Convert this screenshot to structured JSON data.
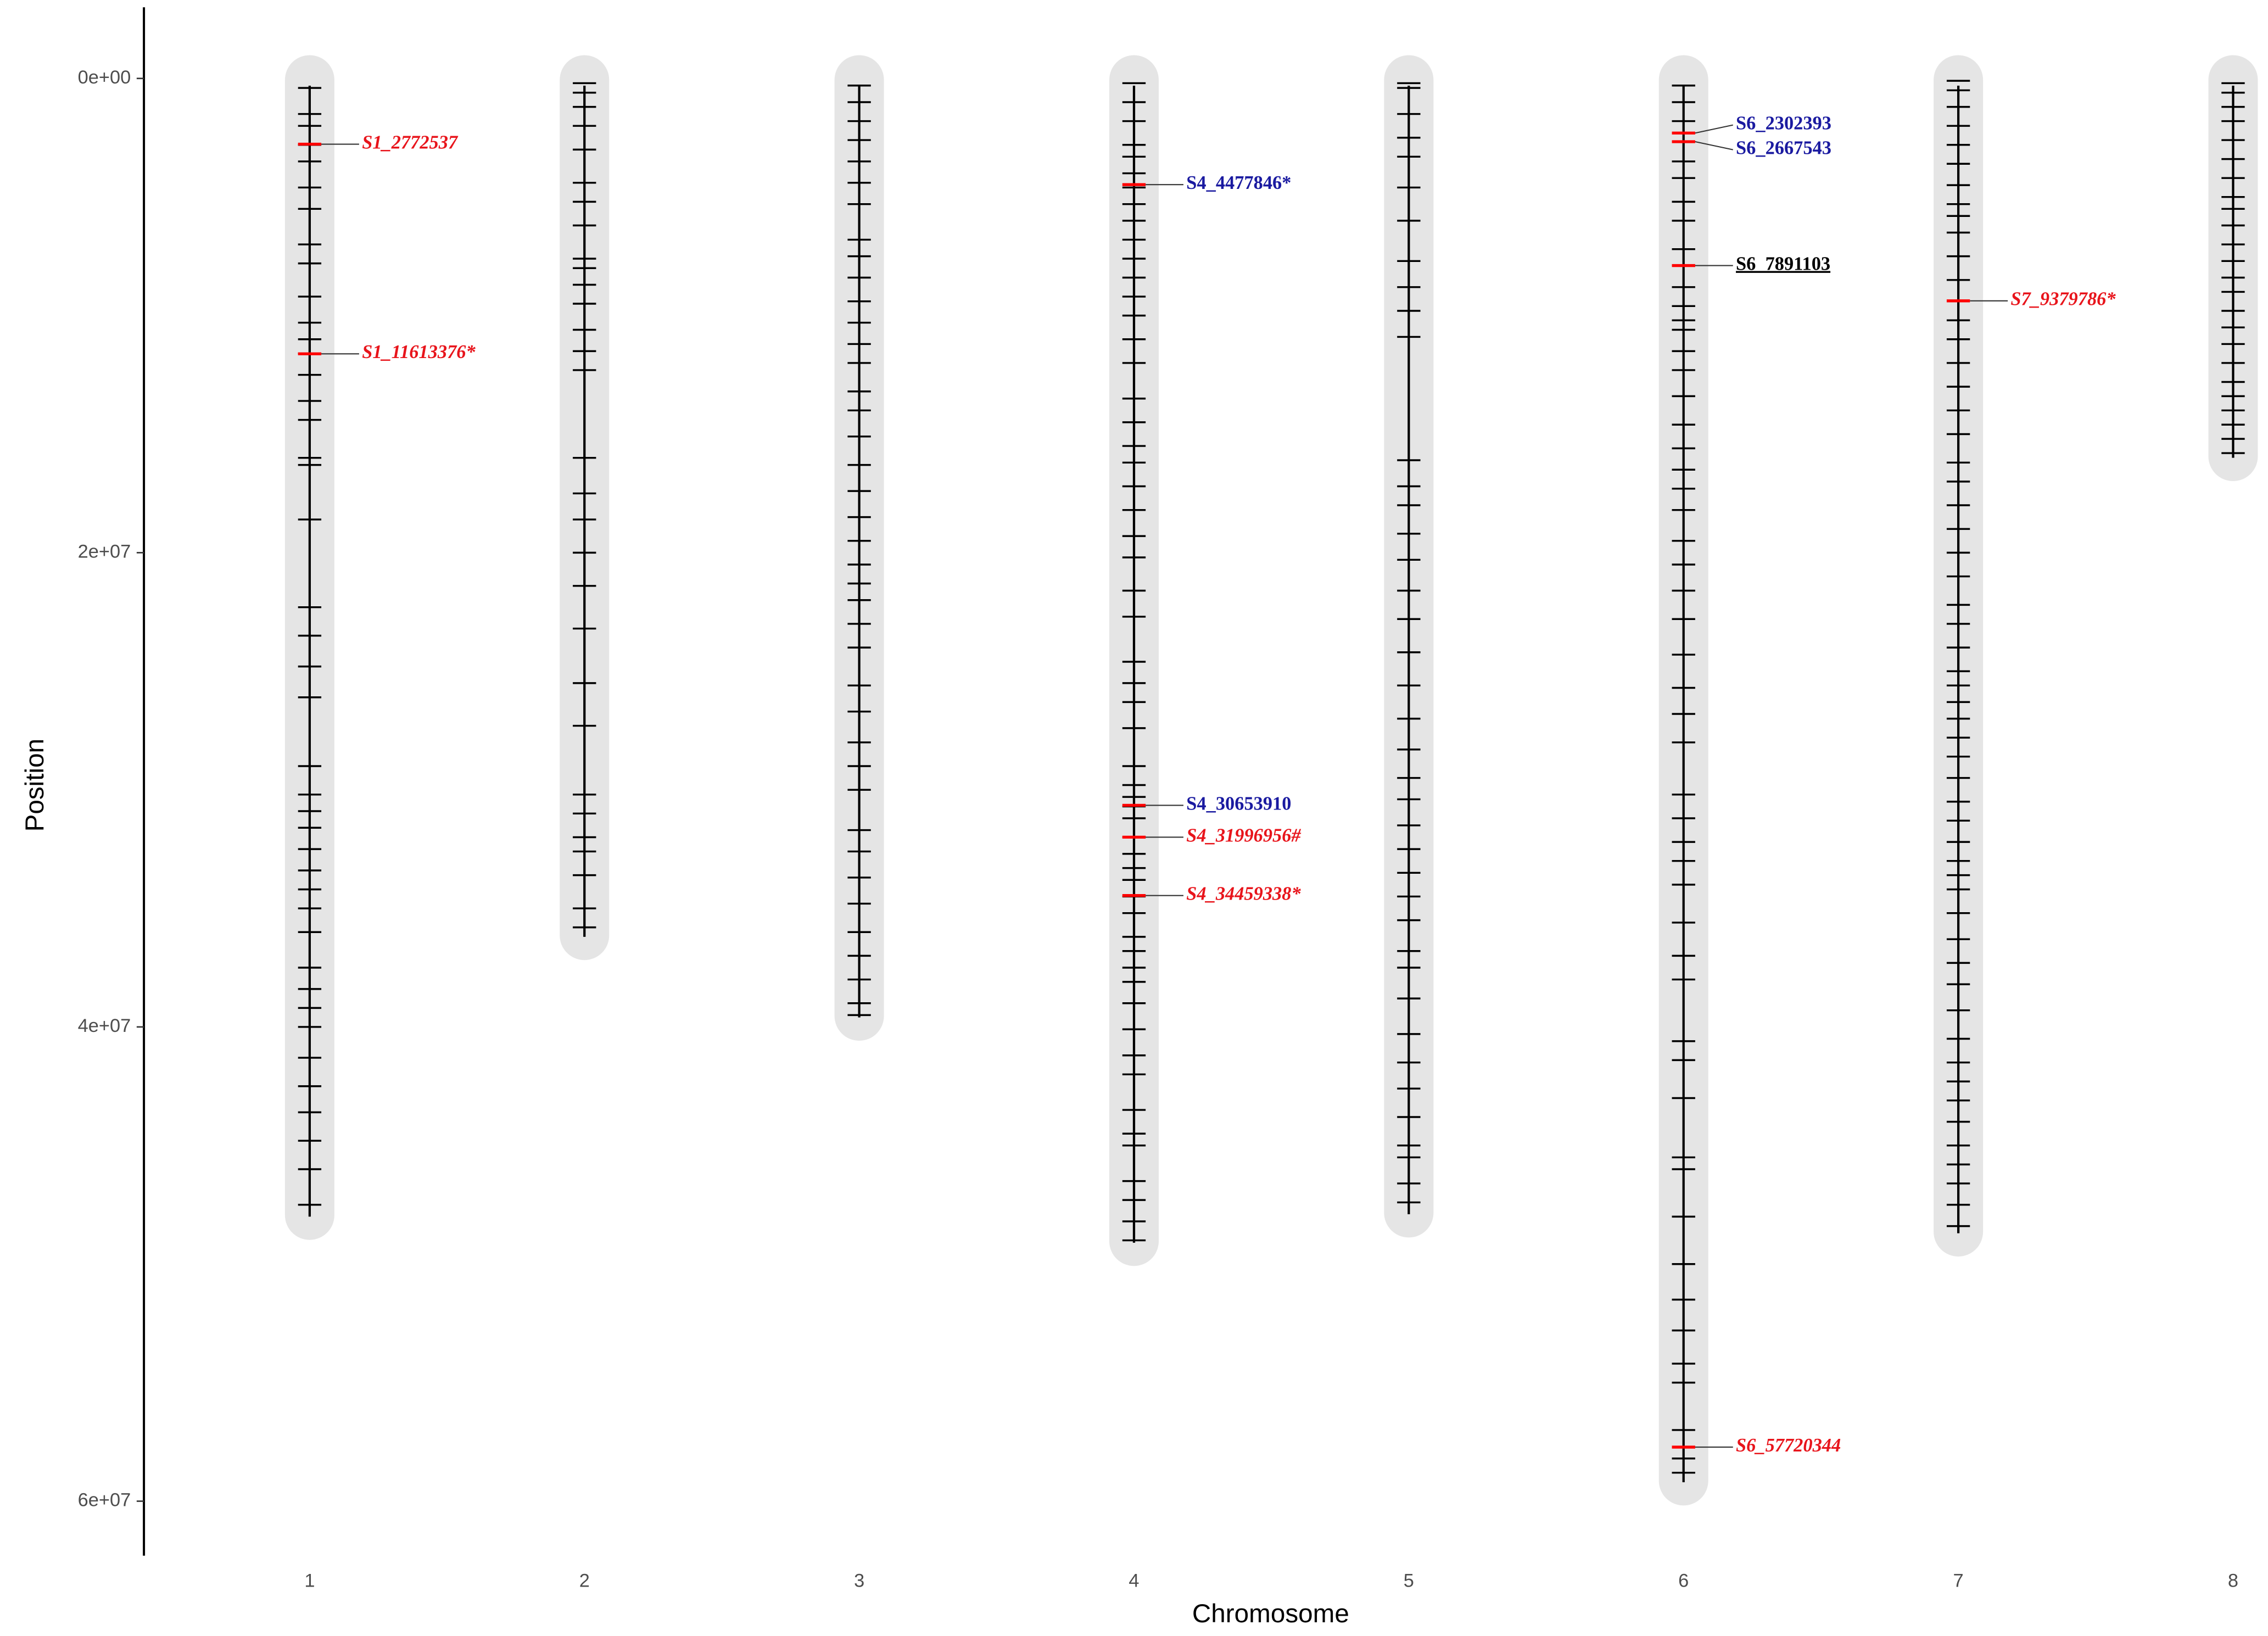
{
  "chart_data": {
    "type": "chromosome_map",
    "x_label": "Chromosome",
    "y_label": "Position",
    "ylim": [
      -3000000,
      62300000
    ],
    "yticks": [
      {
        "value": 0,
        "label": "0e+00"
      },
      {
        "value": 20000000,
        "label": "2e+07"
      },
      {
        "value": 40000000,
        "label": "4e+07"
      },
      {
        "value": 60000000,
        "label": "6e+07"
      }
    ],
    "y_reversed": true,
    "pill_color": "#e5e5e5",
    "marker_color": "#000000",
    "highlight_color": "#ff0000",
    "chromosomes": [
      {
        "name": "1",
        "length": 48000000,
        "markers": [
          400000.0,
          1500000.0,
          2000000.0,
          2800000.0,
          3500000.0,
          4600000.0,
          5500000.0,
          7000000.0,
          7800000.0,
          9200000.0,
          10300000.0,
          11000000.0,
          11600000.0,
          12500000.0,
          13600000.0,
          14400000.0,
          16000000.0,
          16300000.0,
          18600000.0,
          22300000.0,
          23500000.0,
          24800000.0,
          26100000.0,
          29000000.0,
          30200000.0,
          30900000.0,
          31600000.0,
          32500000.0,
          33400000.0,
          34200000.0,
          35000000.0,
          36000000.0,
          37500000.0,
          38400000.0,
          39200000.0,
          40000000.0,
          41300000.0,
          42500000.0,
          43600000.0,
          44800000.0,
          46000000.0,
          47500000.0
        ]
      },
      {
        "name": "2",
        "length": 36200000,
        "markers": [
          200000.0,
          600000.0,
          1200000.0,
          2000000.0,
          3000000.0,
          4400000.0,
          5200000.0,
          6200000.0,
          7600000.0,
          8000000.0,
          8700000.0,
          9500000.0,
          10600000.0,
          11500000.0,
          12300000.0,
          16000000.0,
          17500000.0,
          18600000.0,
          20000000.0,
          21400000.0,
          23200000.0,
          25500000.0,
          27300000.0,
          30200000.0,
          31000000.0,
          32000000.0,
          32600000.0,
          33600000.0,
          35000000.0,
          35800000.0
        ]
      },
      {
        "name": "3",
        "length": 39600000,
        "markers": [
          300000.0,
          1000000.0,
          1800000.0,
          2600000.0,
          3500000.0,
          4400000.0,
          5300000.0,
          6800000.0,
          7500000.0,
          8400000.0,
          9400000.0,
          10300000.0,
          11200000.0,
          12000000.0,
          13200000.0,
          14000000.0,
          15100000.0,
          16300000.0,
          17400000.0,
          18500000.0,
          19500000.0,
          20500000.0,
          21300000.0,
          22000000.0,
          23000000.0,
          24000000.0,
          25600000.0,
          26700000.0,
          28000000.0,
          29000000.0,
          30000000.0,
          31700000.0,
          32600000.0,
          33700000.0,
          34800000.0,
          36000000.0,
          37000000.0,
          38000000.0,
          39000000.0,
          39500000.0
        ]
      },
      {
        "name": "4",
        "length": 49100000,
        "markers": [
          200000.0,
          1000000.0,
          1800000.0,
          2800000.0,
          3300000.0,
          4000000.0,
          4600000.0,
          5300000.0,
          6000000.0,
          6800000.0,
          7600000.0,
          8400000.0,
          9200000.0,
          10000000.0,
          11000000.0,
          12000000.0,
          13500000.0,
          14500000.0,
          15500000.0,
          16200000.0,
          17200000.0,
          18200000.0,
          19300000.0,
          20200000.0,
          21600000.0,
          22700000.0,
          24600000.0,
          25500000.0,
          26300000.0,
          27400000.0,
          29000000.0,
          29800000.0,
          30300000.0,
          30700000.0,
          31200000.0,
          32000000.0,
          32700000.0,
          33300000.0,
          33800000.0,
          34500000.0,
          35200000.0,
          36200000.0,
          36800000.0,
          37500000.0,
          38100000.0,
          39000000.0,
          40100000.0,
          41200000.0,
          42000000.0,
          43500000.0,
          44500000.0,
          45000000.0,
          46500000.0,
          47300000.0,
          48200000.0,
          49000000.0
        ]
      },
      {
        "name": "5",
        "length": 47900000,
        "markers": [
          200000.0,
          400000.0,
          1500000.0,
          2500000.0,
          3300000.0,
          4600000.0,
          6000000.0,
          7700000.0,
          8800000.0,
          9800000.0,
          10900000.0,
          16100000.0,
          17200000.0,
          18000000.0,
          19200000.0,
          20300000.0,
          21600000.0,
          22800000.0,
          24200000.0,
          25600000.0,
          27000000.0,
          28300000.0,
          29500000.0,
          30400000.0,
          31500000.0,
          32500000.0,
          33500000.0,
          34500000.0,
          35500000.0,
          36800000.0,
          37500000.0,
          38800000.0,
          40300000.0,
          41500000.0,
          42600000.0,
          43800000.0,
          45000000.0,
          45500000.0,
          46600000.0,
          47400000.0
        ]
      },
      {
        "name": "6",
        "length": 59200000,
        "markers": [
          300000.0,
          1000000.0,
          1800000.0,
          3500000.0,
          4200000.0,
          5200000.0,
          6000000.0,
          7200000.0,
          8800000.0,
          9600000.0,
          10200000.0,
          10600000.0,
          11500000.0,
          12300000.0,
          13400000.0,
          14600000.0,
          15600000.0,
          16500000.0,
          17300000.0,
          18200000.0,
          19500000.0,
          20500000.0,
          21600000.0,
          22800000.0,
          24300000.0,
          25700000.0,
          26800000.0,
          28000000.0,
          30200000.0,
          31200000.0,
          32200000.0,
          33000000.0,
          34000000.0,
          35600000.0,
          37000000.0,
          38000000.0,
          40600000.0,
          41400000.0,
          43000000.0,
          45500000.0,
          46000000.0,
          48000000.0,
          50000000.0,
          51500000.0,
          52800000.0,
          54200000.0,
          55000000.0,
          57000000.0,
          58200000.0,
          58800000.0
        ]
      },
      {
        "name": "7",
        "length": 48700000,
        "markers": [
          100000.0,
          500000.0,
          1200000.0,
          2000000.0,
          2800000.0,
          3600000.0,
          4500000.0,
          5300000.0,
          5800000.0,
          6500000.0,
          7500000.0,
          8500000.0,
          10200000.0,
          11000000.0,
          12000000.0,
          13000000.0,
          14000000.0,
          15000000.0,
          16200000.0,
          17000000.0,
          18000000.0,
          19000000.0,
          20000000.0,
          21000000.0,
          22200000.0,
          23000000.0,
          24000000.0,
          25000000.0,
          25600000.0,
          26300000.0,
          27000000.0,
          27800000.0,
          28600000.0,
          29500000.0,
          30500000.0,
          31300000.0,
          32200000.0,
          33000000.0,
          33600000.0,
          34200000.0,
          35200000.0,
          36300000.0,
          37300000.0,
          38200000.0,
          39300000.0,
          40500000.0,
          41500000.0,
          42300000.0,
          43100000.0,
          44000000.0,
          45000000.0,
          45800000.0,
          46600000.0,
          47500000.0,
          48400000.0
        ]
      },
      {
        "name": "8",
        "length": 16000000,
        "markers": [
          200000.0,
          600000.0,
          1200000.0,
          1800000.0,
          2600000.0,
          3400000.0,
          4200000.0,
          5000000.0,
          5500000.0,
          6200000.0,
          7000000.0,
          7700000.0,
          8400000.0,
          9000000.0,
          9800000.0,
          10500000.0,
          11200000.0,
          12000000.0,
          12800000.0,
          13400000.0,
          14000000.0,
          14600000.0,
          15200000.0,
          15800000.0
        ]
      }
    ],
    "highlights": [
      {
        "name": "S1_2772537",
        "chromosome": "1",
        "position": 2772537,
        "color": "#e8141b",
        "italic": true,
        "underline": false
      },
      {
        "name": "S1_11613376*",
        "chromosome": "1",
        "position": 11613376,
        "color": "#e8141b",
        "italic": true,
        "underline": false
      },
      {
        "name": "S4_4477846*",
        "chromosome": "4",
        "position": 4477846,
        "color": "#1a1aa0",
        "italic": false,
        "underline": false
      },
      {
        "name": "S4_30653910",
        "chromosome": "4",
        "position": 30653910,
        "color": "#1a1aa0",
        "italic": false,
        "underline": false
      },
      {
        "name": "S4_31996956#",
        "chromosome": "4",
        "position": 31996956,
        "color": "#e8141b",
        "italic": true,
        "underline": false
      },
      {
        "name": "S4_34459338*",
        "chromosome": "4",
        "position": 34459338,
        "color": "#e8141b",
        "italic": true,
        "underline": false
      },
      {
        "name": "S6_2302393",
        "chromosome": "6",
        "position": 2302393,
        "color": "#1a1aa0",
        "italic": false,
        "underline": false
      },
      {
        "name": "S6_2667543",
        "chromosome": "6",
        "position": 2667543,
        "color": "#1a1aa0",
        "italic": false,
        "underline": false
      },
      {
        "name": "S6_7891103",
        "chromosome": "6",
        "position": 7891103,
        "color": "#000000",
        "italic": false,
        "underline": true
      },
      {
        "name": "S6_57720344",
        "chromosome": "6",
        "position": 57720344,
        "color": "#e8141b",
        "italic": true,
        "underline": false
      },
      {
        "name": "S7_9379786*",
        "chromosome": "7",
        "position": 9379786,
        "color": "#e8141b",
        "italic": true,
        "underline": false
      }
    ]
  }
}
